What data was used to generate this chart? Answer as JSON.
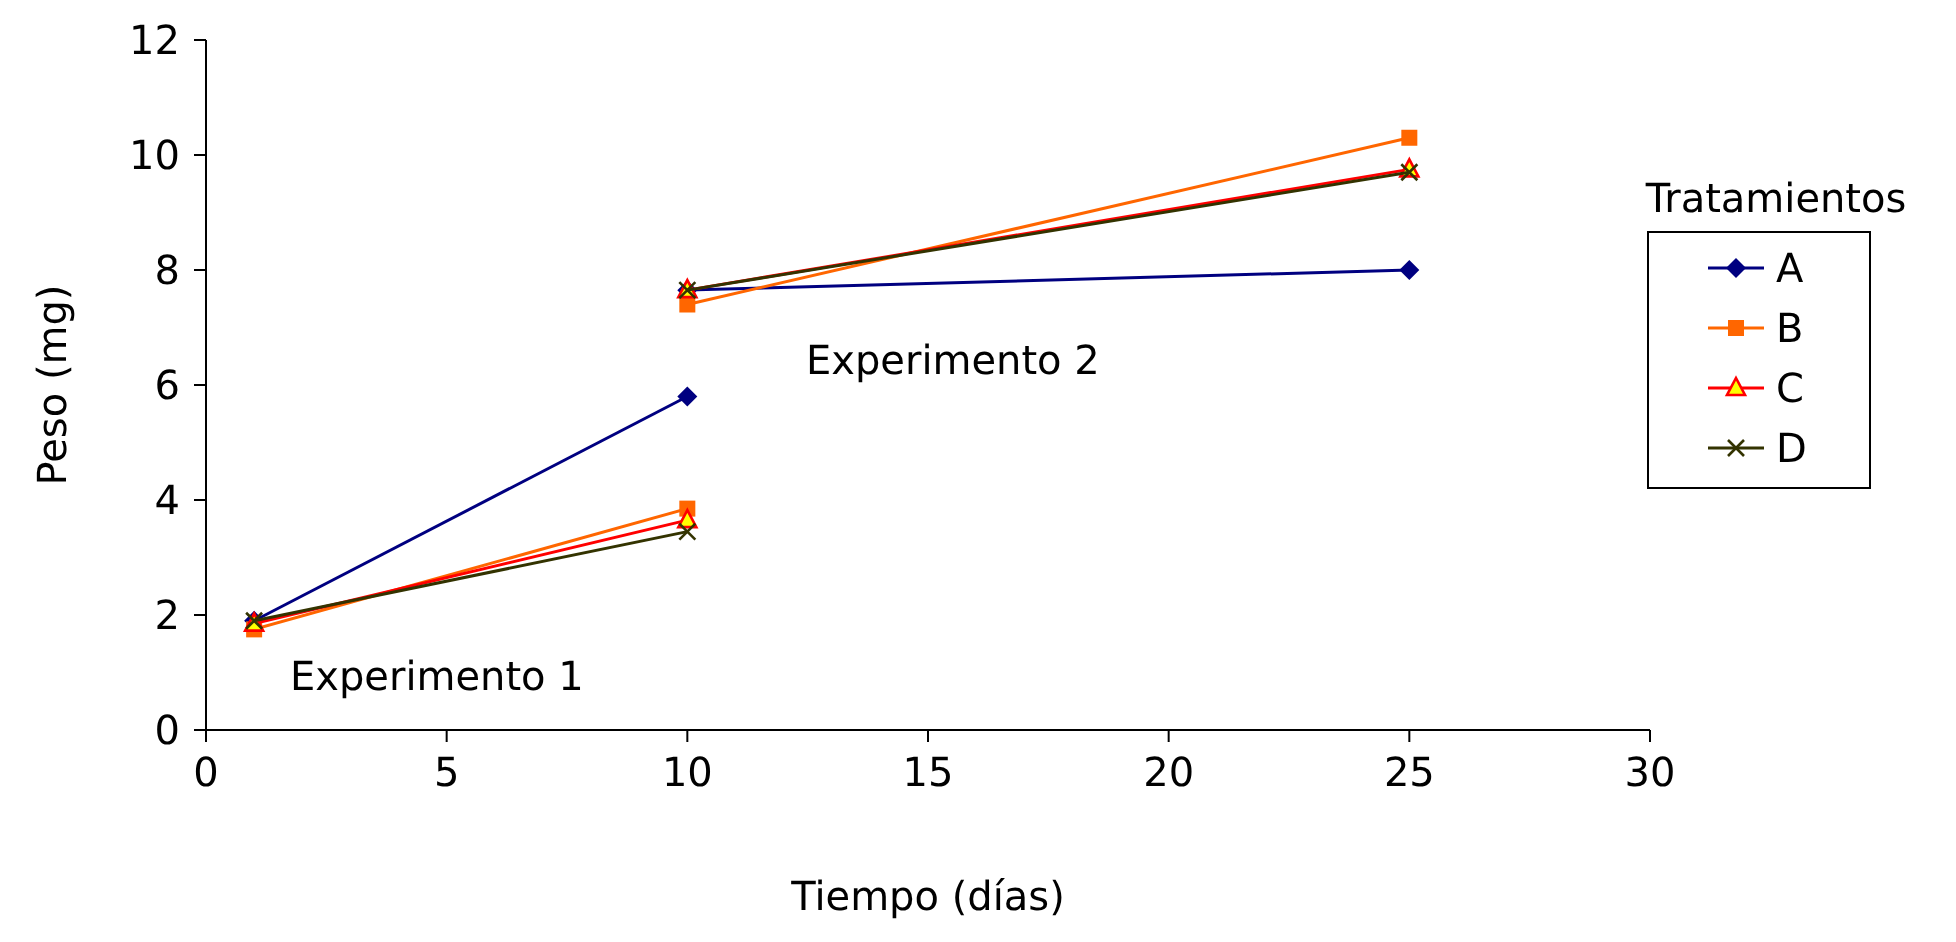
{
  "chart_data": {
    "type": "line",
    "xlabel": "Tiempo (días)",
    "ylabel": "Peso (mg)",
    "legend_title": "Tratamientos",
    "legend": "right",
    "grid": false,
    "xlim": [
      0,
      30
    ],
    "xticks": [
      0,
      5,
      10,
      15,
      20,
      25,
      30
    ],
    "ylim": [
      0,
      12
    ],
    "yticks": [
      0,
      2,
      4,
      6,
      8,
      10,
      12
    ],
    "series": [
      {
        "name": "A",
        "color": "#000080",
        "marker": "diamond",
        "x": [
          1,
          10
        ],
        "values": [
          1.9,
          5.8
        ]
      },
      {
        "name": "B",
        "color": "#ff6600",
        "marker": "square",
        "x": [
          1,
          10
        ],
        "values": [
          1.75,
          3.85
        ]
      },
      {
        "name": "C",
        "color": "#ff0000",
        "marker": "triangle",
        "x": [
          1,
          10
        ],
        "values": [
          1.85,
          3.65
        ]
      },
      {
        "name": "D",
        "color": "#333300",
        "marker": "cross",
        "x": [
          1,
          10
        ],
        "values": [
          1.9,
          3.45
        ]
      },
      {
        "color": "#000080",
        "marker": "diamond",
        "x": [
          10,
          25
        ],
        "values": [
          7.65,
          8.0
        ]
      },
      {
        "color": "#ff6600",
        "marker": "square",
        "x": [
          10,
          25
        ],
        "values": [
          7.4,
          10.3
        ]
      },
      {
        "color": "#ff0000",
        "marker": "triangle",
        "x": [
          10,
          25
        ],
        "values": [
          7.65,
          9.75
        ]
      },
      {
        "color": "#333300",
        "marker": "cross",
        "x": [
          10,
          25
        ],
        "values": [
          7.65,
          9.7
        ]
      }
    ],
    "annotations": [
      "Experimento 1",
      "Experimento 2"
    ]
  }
}
